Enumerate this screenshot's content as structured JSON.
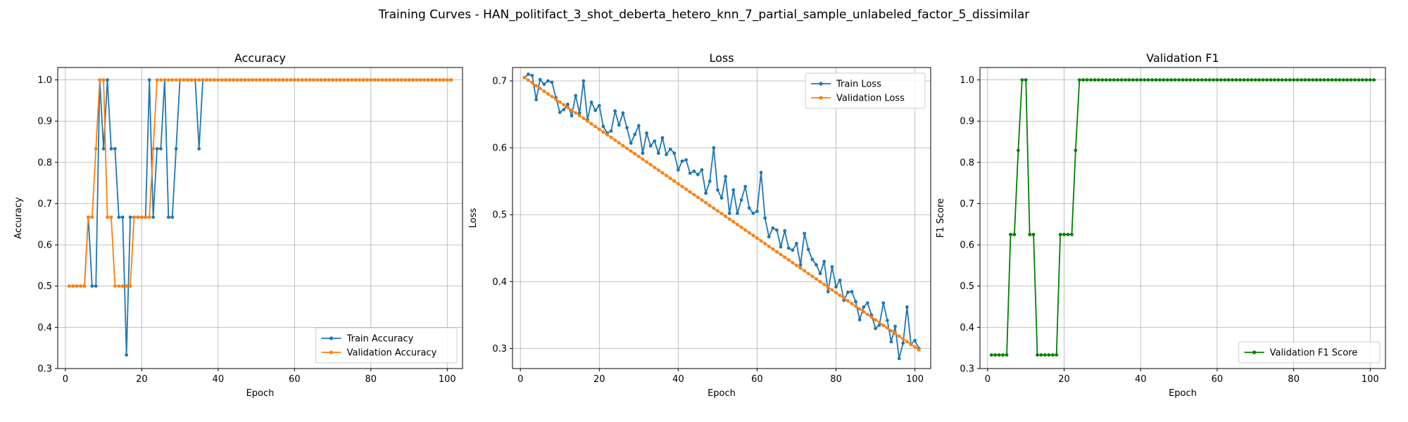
{
  "figure": {
    "suptitle": "Training Curves - HAN_politifact_3_shot_deberta_hetero_knn_7_partial_sample_unlabeled_factor_5_dissimilar"
  },
  "chart_data": [
    {
      "type": "line",
      "title": "Accuracy",
      "xlabel": "Epoch",
      "ylabel": "Accuracy",
      "xlim": [
        -2,
        104
      ],
      "ylim": [
        0.3,
        1.03
      ],
      "xticks": [
        0,
        20,
        40,
        60,
        80,
        100
      ],
      "yticks": [
        0.3,
        0.4,
        0.5,
        0.6,
        0.7,
        0.8,
        0.9,
        1.0
      ],
      "grid": true,
      "legend": "lower-right",
      "series": [
        {
          "name": "Train Accuracy",
          "color": "#1f77b4",
          "x": [
            1,
            2,
            3,
            4,
            5,
            6,
            7,
            8,
            9,
            10,
            11,
            12,
            13,
            14,
            15,
            16,
            17,
            18,
            19,
            20,
            21,
            22,
            23,
            24,
            25,
            26,
            27,
            28,
            29,
            30,
            31,
            32,
            33,
            34,
            35,
            36,
            37,
            38,
            39,
            40,
            41,
            42,
            43,
            44,
            45,
            46,
            47,
            48,
            49,
            50,
            51,
            52,
            53,
            54,
            55,
            56,
            57,
            58,
            59,
            60,
            61,
            62,
            63,
            64,
            65,
            66,
            67,
            68,
            69,
            70,
            71,
            72,
            73,
            74,
            75,
            76,
            77,
            78,
            79,
            80,
            81,
            82,
            83,
            84,
            85,
            86,
            87,
            88,
            89,
            90,
            91,
            92,
            93,
            94,
            95,
            96,
            97,
            98,
            99,
            100,
            101
          ],
          "values": [
            0.5,
            0.5,
            0.5,
            0.5,
            0.5,
            0.667,
            0.5,
            0.5,
            1.0,
            0.833,
            1.0,
            0.833,
            0.833,
            0.667,
            0.667,
            0.333,
            0.667,
            0.667,
            0.667,
            0.667,
            0.667,
            1.0,
            0.667,
            0.833,
            0.833,
            1.0,
            0.667,
            0.667,
            0.833,
            1.0,
            1.0,
            1.0,
            1.0,
            1.0,
            0.833,
            1.0,
            1.0,
            1.0,
            1.0,
            1.0,
            1.0,
            1.0,
            1.0,
            1.0,
            1.0,
            1.0,
            1.0,
            1.0,
            1.0,
            1.0,
            1.0,
            1.0,
            1.0,
            1.0,
            1.0,
            1.0,
            1.0,
            1.0,
            1.0,
            1.0,
            1.0,
            1.0,
            1.0,
            1.0,
            1.0,
            1.0,
            1.0,
            1.0,
            1.0,
            1.0,
            1.0,
            1.0,
            1.0,
            1.0,
            1.0,
            1.0,
            1.0,
            1.0,
            1.0,
            1.0,
            1.0,
            1.0,
            1.0,
            1.0,
            1.0,
            1.0,
            1.0,
            1.0,
            1.0,
            1.0,
            1.0,
            1.0,
            1.0,
            1.0,
            1.0,
            1.0,
            1.0,
            1.0,
            1.0,
            1.0,
            1.0
          ]
        },
        {
          "name": "Validation Accuracy",
          "color": "#ff7f0e",
          "x": [
            1,
            2,
            3,
            4,
            5,
            6,
            7,
            8,
            9,
            10,
            11,
            12,
            13,
            14,
            15,
            16,
            17,
            18,
            19,
            20,
            21,
            22,
            23,
            24,
            25,
            26,
            27,
            28,
            29,
            30,
            31,
            32,
            33,
            34,
            35,
            36,
            37,
            38,
            39,
            40,
            41,
            42,
            43,
            44,
            45,
            46,
            47,
            48,
            49,
            50,
            51,
            52,
            53,
            54,
            55,
            56,
            57,
            58,
            59,
            60,
            61,
            62,
            63,
            64,
            65,
            66,
            67,
            68,
            69,
            70,
            71,
            72,
            73,
            74,
            75,
            76,
            77,
            78,
            79,
            80,
            81,
            82,
            83,
            84,
            85,
            86,
            87,
            88,
            89,
            90,
            91,
            92,
            93,
            94,
            95,
            96,
            97,
            98,
            99,
            100,
            101
          ],
          "values": [
            0.5,
            0.5,
            0.5,
            0.5,
            0.5,
            0.667,
            0.667,
            0.833,
            1.0,
            1.0,
            0.667,
            0.667,
            0.5,
            0.5,
            0.5,
            0.5,
            0.5,
            0.667,
            0.667,
            0.667,
            0.667,
            0.667,
            0.833,
            1.0,
            1.0,
            1.0,
            1.0,
            1.0,
            1.0,
            1.0,
            1.0,
            1.0,
            1.0,
            1.0,
            1.0,
            1.0,
            1.0,
            1.0,
            1.0,
            1.0,
            1.0,
            1.0,
            1.0,
            1.0,
            1.0,
            1.0,
            1.0,
            1.0,
            1.0,
            1.0,
            1.0,
            1.0,
            1.0,
            1.0,
            1.0,
            1.0,
            1.0,
            1.0,
            1.0,
            1.0,
            1.0,
            1.0,
            1.0,
            1.0,
            1.0,
            1.0,
            1.0,
            1.0,
            1.0,
            1.0,
            1.0,
            1.0,
            1.0,
            1.0,
            1.0,
            1.0,
            1.0,
            1.0,
            1.0,
            1.0,
            1.0,
            1.0,
            1.0,
            1.0,
            1.0,
            1.0,
            1.0,
            1.0,
            1.0,
            1.0,
            1.0,
            1.0,
            1.0,
            1.0,
            1.0,
            1.0,
            1.0,
            1.0,
            1.0,
            1.0,
            1.0
          ]
        }
      ]
    },
    {
      "type": "line",
      "title": "Loss",
      "xlabel": "Epoch",
      "ylabel": "Loss",
      "xlim": [
        -2,
        104
      ],
      "ylim": [
        0.27,
        0.72
      ],
      "xticks": [
        0,
        20,
        40,
        60,
        80,
        100
      ],
      "yticks": [
        0.3,
        0.4,
        0.5,
        0.6,
        0.7
      ],
      "grid": true,
      "legend": "top-right",
      "series": [
        {
          "name": "Train Loss",
          "color": "#1f77b4",
          "x": [
            1,
            2,
            3,
            4,
            5,
            6,
            7,
            8,
            9,
            10,
            11,
            12,
            13,
            14,
            15,
            16,
            17,
            18,
            19,
            20,
            21,
            22,
            23,
            24,
            25,
            26,
            27,
            28,
            29,
            30,
            31,
            32,
            33,
            34,
            35,
            36,
            37,
            38,
            39,
            40,
            41,
            42,
            43,
            44,
            45,
            46,
            47,
            48,
            49,
            50,
            51,
            52,
            53,
            54,
            55,
            56,
            57,
            58,
            59,
            60,
            61,
            62,
            63,
            64,
            65,
            66,
            67,
            68,
            69,
            70,
            71,
            72,
            73,
            74,
            75,
            76,
            77,
            78,
            79,
            80,
            81,
            82,
            83,
            84,
            85,
            86,
            87,
            88,
            89,
            90,
            91,
            92,
            93,
            94,
            95,
            96,
            97,
            98,
            99,
            100,
            101
          ],
          "values": [
            0.705,
            0.71,
            0.708,
            0.672,
            0.702,
            0.695,
            0.7,
            0.698,
            0.675,
            0.653,
            0.657,
            0.665,
            0.648,
            0.678,
            0.652,
            0.7,
            0.642,
            0.668,
            0.656,
            0.663,
            0.632,
            0.622,
            0.625,
            0.655,
            0.634,
            0.652,
            0.63,
            0.607,
            0.62,
            0.633,
            0.592,
            0.622,
            0.603,
            0.61,
            0.592,
            0.615,
            0.59,
            0.598,
            0.592,
            0.567,
            0.58,
            0.582,
            0.562,
            0.565,
            0.56,
            0.567,
            0.532,
            0.55,
            0.6,
            0.537,
            0.525,
            0.557,
            0.502,
            0.537,
            0.502,
            0.522,
            0.542,
            0.51,
            0.502,
            0.505,
            0.563,
            0.495,
            0.467,
            0.48,
            0.477,
            0.452,
            0.476,
            0.45,
            0.447,
            0.457,
            0.425,
            0.472,
            0.448,
            0.433,
            0.425,
            0.412,
            0.43,
            0.385,
            0.422,
            0.392,
            0.402,
            0.372,
            0.384,
            0.385,
            0.37,
            0.343,
            0.362,
            0.368,
            0.35,
            0.33,
            0.335,
            0.368,
            0.342,
            0.31,
            0.333,
            0.285,
            0.308,
            0.362,
            0.306,
            0.312,
            0.3
          ],
          "values_note": ""
        },
        {
          "name": "Validation Loss",
          "color": "#ff7f0e",
          "x": [
            1,
            101
          ],
          "values": [
            0.705,
            0.298
          ],
          "linear": true
        }
      ]
    },
    {
      "type": "line",
      "title": "Validation F1",
      "xlabel": "Epoch",
      "ylabel": "F1 Score",
      "xlim": [
        -2,
        104
      ],
      "ylim": [
        0.3,
        1.03
      ],
      "xticks": [
        0,
        20,
        40,
        60,
        80,
        100
      ],
      "yticks": [
        0.3,
        0.4,
        0.5,
        0.6,
        0.7,
        0.8,
        0.9,
        1.0
      ],
      "grid": true,
      "legend": "lower-right",
      "series": [
        {
          "name": "Validation F1 Score",
          "color": "#008000",
          "x": [
            1,
            2,
            3,
            4,
            5,
            6,
            7,
            8,
            9,
            10,
            11,
            12,
            13,
            14,
            15,
            16,
            17,
            18,
            19,
            20,
            21,
            22,
            23,
            24,
            25,
            26,
            27,
            28,
            29,
            30,
            31,
            32,
            33,
            34,
            35,
            36,
            37,
            38,
            39,
            40,
            41,
            42,
            43,
            44,
            45,
            46,
            47,
            48,
            49,
            50,
            51,
            52,
            53,
            54,
            55,
            56,
            57,
            58,
            59,
            60,
            61,
            62,
            63,
            64,
            65,
            66,
            67,
            68,
            69,
            70,
            71,
            72,
            73,
            74,
            75,
            76,
            77,
            78,
            79,
            80,
            81,
            82,
            83,
            84,
            85,
            86,
            87,
            88,
            89,
            90,
            91,
            92,
            93,
            94,
            95,
            96,
            97,
            98,
            99,
            100,
            101
          ],
          "values": [
            0.333,
            0.333,
            0.333,
            0.333,
            0.333,
            0.625,
            0.625,
            0.829,
            1.0,
            1.0,
            0.625,
            0.625,
            0.333,
            0.333,
            0.333,
            0.333,
            0.333,
            0.333,
            0.625,
            0.625,
            0.625,
            0.625,
            0.829,
            1.0,
            1.0,
            1.0,
            1.0,
            1.0,
            1.0,
            1.0,
            1.0,
            1.0,
            1.0,
            1.0,
            1.0,
            1.0,
            1.0,
            1.0,
            1.0,
            1.0,
            1.0,
            1.0,
            1.0,
            1.0,
            1.0,
            1.0,
            1.0,
            1.0,
            1.0,
            1.0,
            1.0,
            1.0,
            1.0,
            1.0,
            1.0,
            1.0,
            1.0,
            1.0,
            1.0,
            1.0,
            1.0,
            1.0,
            1.0,
            1.0,
            1.0,
            1.0,
            1.0,
            1.0,
            1.0,
            1.0,
            1.0,
            1.0,
            1.0,
            1.0,
            1.0,
            1.0,
            1.0,
            1.0,
            1.0,
            1.0,
            1.0,
            1.0,
            1.0,
            1.0,
            1.0,
            1.0,
            1.0,
            1.0,
            1.0,
            1.0,
            1.0,
            1.0,
            1.0,
            1.0,
            1.0,
            1.0,
            1.0,
            1.0,
            1.0,
            1.0,
            1.0
          ]
        }
      ]
    }
  ]
}
